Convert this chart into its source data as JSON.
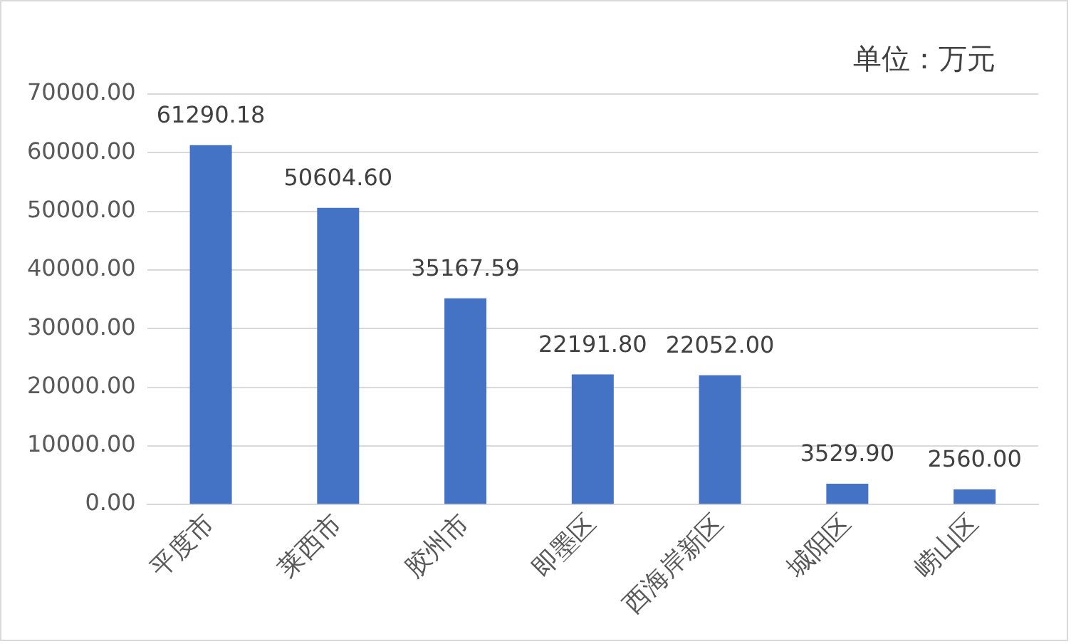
{
  "chart_data": {
    "type": "bar",
    "annotations": [
      "单位：万元"
    ],
    "categories": [
      "平度市",
      "莱西市",
      "胶州市",
      "即墨区",
      "西海岸新区",
      "城阳区",
      "崂山区"
    ],
    "values": [
      61290.18,
      50604.6,
      35167.59,
      22191.8,
      22052,
      3529.9,
      2560
    ],
    "value_labels": [
      "61290.18",
      "50604.60",
      "35167.59",
      "22191.80",
      "22052.00",
      "3529.90",
      "2560.00"
    ],
    "color": "#4472c4",
    "ylim": [
      0,
      70000
    ],
    "yticks": [
      {
        "value": 0,
        "label": "0.00"
      },
      {
        "value": 10000,
        "label": "10000.00"
      },
      {
        "value": 20000,
        "label": "20000.00"
      },
      {
        "value": 30000,
        "label": "30000.00"
      },
      {
        "value": 40000,
        "label": "40000.00"
      },
      {
        "value": 50000,
        "label": "50000.00"
      },
      {
        "value": 60000,
        "label": "60000.00"
      },
      {
        "value": 70000,
        "label": "70000.00"
      }
    ],
    "grid": "y"
  }
}
